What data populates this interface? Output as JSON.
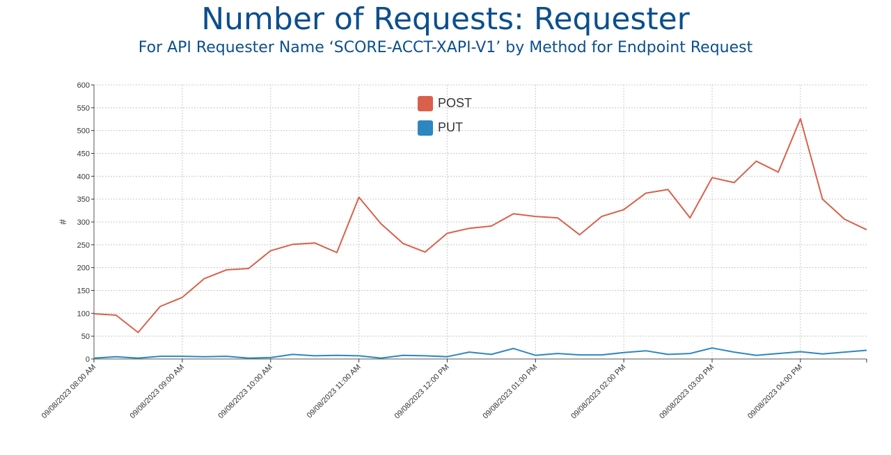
{
  "title": "Number of Requests: Requester",
  "subtitle": "For API Requester Name ‘SCORE-ACCT-XAPI-V1’ by Method for Endpoint Request",
  "chart_data": {
    "type": "line",
    "title": "Number of Requests: Requester",
    "subtitle": "For API Requester Name ‘SCORE-ACCT-XAPI-V1’ by Method for Endpoint Request",
    "xlabel": "",
    "ylabel": "#",
    "ylim": [
      0,
      600
    ],
    "yticks": [
      0,
      50,
      100,
      150,
      200,
      250,
      300,
      350,
      400,
      450,
      500,
      550,
      600
    ],
    "xrange": [
      "09/08/2023 08:00 AM",
      "09/08/2023 04:45 PM"
    ],
    "xticks": [
      "09/08/2023 08:00 AM",
      "09/08/2023 09:00 AM",
      "09/08/2023 10:00 AM",
      "09/08/2023 11:00 AM",
      "09/08/2023 12:00 PM",
      "09/08/2023 01:00 PM",
      "09/08/2023 02:00 PM",
      "09/08/2023 03:00 PM",
      "09/08/2023 04:00 PM"
    ],
    "x": [
      "08:00 AM",
      "08:15 AM",
      "08:30 AM",
      "08:45 AM",
      "09:00 AM",
      "09:15 AM",
      "09:30 AM",
      "09:45 AM",
      "10:00 AM",
      "10:15 AM",
      "10:30 AM",
      "10:45 AM",
      "11:00 AM",
      "11:15 AM",
      "11:30 AM",
      "11:45 AM",
      "12:00 PM",
      "12:15 PM",
      "12:30 PM",
      "12:45 PM",
      "01:00 PM",
      "01:15 PM",
      "01:30 PM",
      "01:45 PM",
      "02:00 PM",
      "02:15 PM",
      "02:30 PM",
      "02:45 PM",
      "03:00 PM",
      "03:15 PM",
      "03:30 PM",
      "03:45 PM",
      "04:00 PM",
      "04:15 PM",
      "04:30 PM",
      "04:45 PM"
    ],
    "grid": true,
    "legend_position": "top-center",
    "series": [
      {
        "name": "POST",
        "color": "#d9604a",
        "values": [
          99,
          96,
          58,
          115,
          135,
          176,
          195,
          198,
          237,
          251,
          254,
          233,
          354,
          296,
          253,
          234,
          275,
          286,
          291,
          318,
          312,
          309,
          272,
          312,
          327,
          363,
          371,
          309,
          397,
          386,
          433,
          409,
          526,
          350,
          306,
          283
        ]
      },
      {
        "name": "PUT",
        "color": "#2e86c1",
        "values": [
          2,
          5,
          2,
          6,
          6,
          5,
          6,
          2,
          3,
          10,
          7,
          8,
          7,
          2,
          8,
          7,
          5,
          15,
          10,
          23,
          8,
          12,
          9,
          9,
          14,
          18,
          10,
          12,
          24,
          15,
          8,
          12,
          16,
          11,
          15,
          19
        ]
      }
    ]
  }
}
